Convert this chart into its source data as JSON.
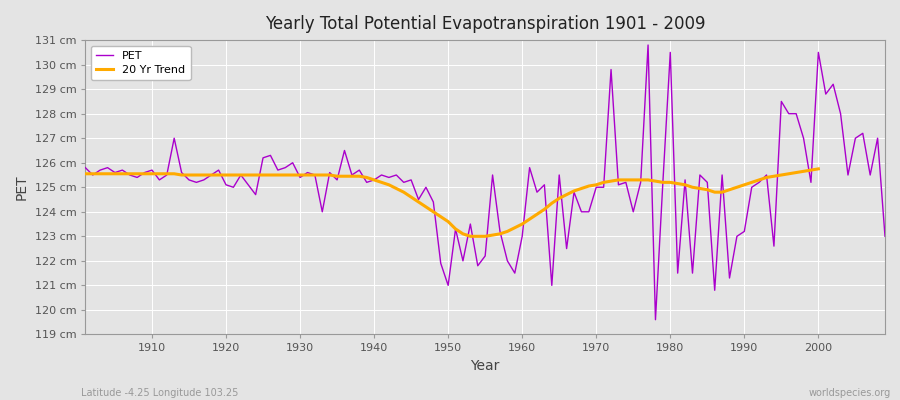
{
  "title": "Yearly Total Potential Evapotranspiration 1901 - 2009",
  "xlabel": "Year",
  "ylabel": "PET",
  "subtitle_left": "Latitude -4.25 Longitude 103.25",
  "subtitle_right": "worldspecies.org",
  "pet_color": "#aa00cc",
  "trend_color": "#ffaa00",
  "bg_color": "#e4e4e4",
  "grid_color": "#ffffff",
  "ylim": [
    119,
    131
  ],
  "yticks": [
    119,
    120,
    121,
    122,
    123,
    124,
    125,
    126,
    127,
    128,
    129,
    130,
    131
  ],
  "xticks": [
    1910,
    1920,
    1930,
    1940,
    1950,
    1960,
    1970,
    1980,
    1990,
    2000
  ],
  "xlim": [
    1901,
    2009
  ],
  "years": [
    1901,
    1902,
    1903,
    1904,
    1905,
    1906,
    1907,
    1908,
    1909,
    1910,
    1911,
    1912,
    1913,
    1914,
    1915,
    1916,
    1917,
    1918,
    1919,
    1920,
    1921,
    1922,
    1923,
    1924,
    1925,
    1926,
    1927,
    1928,
    1929,
    1930,
    1931,
    1932,
    1933,
    1934,
    1935,
    1936,
    1937,
    1938,
    1939,
    1940,
    1941,
    1942,
    1943,
    1944,
    1945,
    1946,
    1947,
    1948,
    1949,
    1950,
    1951,
    1952,
    1953,
    1954,
    1955,
    1956,
    1957,
    1958,
    1959,
    1960,
    1961,
    1962,
    1963,
    1964,
    1965,
    1966,
    1967,
    1968,
    1969,
    1970,
    1971,
    1972,
    1973,
    1974,
    1975,
    1976,
    1977,
    1978,
    1979,
    1980,
    1981,
    1982,
    1983,
    1984,
    1985,
    1986,
    1987,
    1988,
    1989,
    1990,
    1991,
    1992,
    1993,
    1994,
    1995,
    1996,
    1997,
    1998,
    1999,
    2000,
    2001,
    2002,
    2003,
    2004,
    2005,
    2006,
    2007,
    2008,
    2009
  ],
  "pet": [
    125.8,
    125.5,
    125.7,
    125.8,
    125.6,
    125.7,
    125.5,
    125.4,
    125.6,
    125.7,
    125.3,
    125.5,
    127.0,
    125.6,
    125.3,
    125.2,
    125.3,
    125.5,
    125.7,
    125.1,
    125.0,
    125.5,
    125.1,
    124.7,
    126.2,
    126.3,
    125.7,
    125.8,
    126.0,
    125.4,
    125.6,
    125.5,
    124.0,
    125.6,
    125.3,
    126.5,
    125.5,
    125.7,
    125.2,
    125.3,
    125.5,
    125.4,
    125.5,
    125.2,
    125.3,
    124.5,
    125.0,
    124.4,
    121.9,
    121.0,
    123.3,
    122.0,
    123.5,
    121.8,
    122.2,
    125.5,
    123.2,
    122.0,
    121.5,
    123.0,
    125.8,
    124.8,
    125.1,
    121.0,
    125.5,
    122.5,
    124.8,
    124.0,
    124.0,
    125.0,
    125.0,
    129.8,
    125.1,
    125.2,
    124.0,
    125.2,
    130.8,
    119.6,
    125.2,
    130.5,
    121.5,
    125.3,
    121.5,
    125.5,
    125.2,
    120.8,
    125.5,
    121.3,
    123.0,
    123.2,
    125.0,
    125.2,
    125.5,
    122.6,
    128.5,
    128.0,
    128.0,
    127.0,
    125.2,
    130.5,
    128.8,
    129.2,
    128.0,
    125.5,
    127.0,
    127.2,
    125.5,
    127.0,
    123.0
  ],
  "trend": [
    125.55,
    125.55,
    125.55,
    125.55,
    125.55,
    125.55,
    125.55,
    125.55,
    125.55,
    125.55,
    125.55,
    125.55,
    125.55,
    125.5,
    125.5,
    125.5,
    125.5,
    125.5,
    125.5,
    125.5,
    125.5,
    125.5,
    125.5,
    125.5,
    125.5,
    125.5,
    125.5,
    125.5,
    125.5,
    125.5,
    125.5,
    125.5,
    125.5,
    125.5,
    125.45,
    125.45,
    125.45,
    125.45,
    125.4,
    125.3,
    125.2,
    125.1,
    124.95,
    124.8,
    124.6,
    124.4,
    124.2,
    124.0,
    123.8,
    123.6,
    123.3,
    123.1,
    123.0,
    123.0,
    123.0,
    123.05,
    123.1,
    123.2,
    123.35,
    123.5,
    123.7,
    123.9,
    124.1,
    124.35,
    124.55,
    124.7,
    124.85,
    124.95,
    125.05,
    125.1,
    125.2,
    125.25,
    125.3,
    125.3,
    125.3,
    125.3,
    125.3,
    125.25,
    125.2,
    125.2,
    125.15,
    125.1,
    125.0,
    124.95,
    124.9,
    124.8,
    124.8,
    124.9,
    125.0,
    125.1,
    125.2,
    125.3,
    125.4,
    125.45,
    125.5,
    125.55,
    125.6,
    125.65,
    125.7,
    125.75,
    null,
    null,
    null,
    null,
    null,
    null,
    null,
    null,
    null
  ]
}
